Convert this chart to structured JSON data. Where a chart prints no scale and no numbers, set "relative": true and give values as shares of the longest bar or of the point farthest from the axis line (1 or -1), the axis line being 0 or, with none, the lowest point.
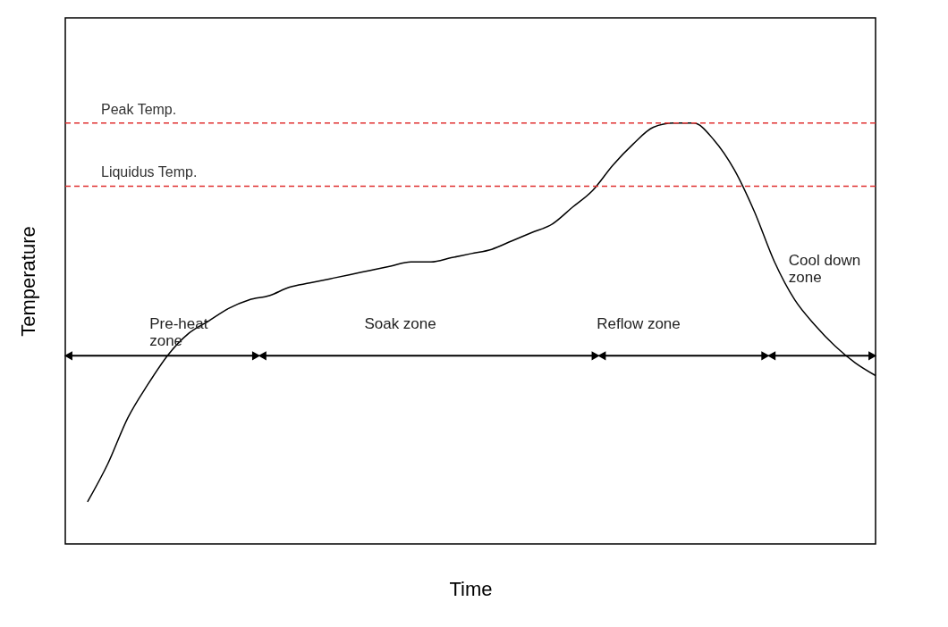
{
  "chart_data": {
    "type": "line",
    "relative": true,
    "xlabel": "Time",
    "ylabel": "Temperature",
    "categories": [
      null,
      null,
      null,
      null,
      null,
      null,
      null,
      null,
      null,
      null,
      null,
      null,
      null,
      null,
      null,
      null,
      null,
      null,
      null,
      null,
      null,
      null,
      null,
      null,
      null,
      null,
      null,
      null,
      null,
      null,
      null,
      null,
      null,
      null,
      null,
      null,
      null,
      null,
      null,
      null
    ],
    "series": [
      {
        "color": "#000000",
        "values": [
          0.1,
          0.19,
          0.3,
          0.38,
          0.45,
          0.5,
          0.53,
          0.56,
          0.58,
          0.59,
          0.61,
          0.62,
          0.63,
          0.64,
          0.65,
          0.66,
          0.67,
          0.67,
          0.68,
          0.69,
          0.7,
          0.72,
          0.74,
          0.76,
          0.8,
          0.84,
          0.9,
          0.95,
          0.99,
          1.0,
          1.0,
          0.96,
          0.89,
          0.79,
          0.67,
          0.58,
          0.52,
          0.47,
          0.43,
          0.4
        ]
      }
    ],
    "ref_lines": [
      {
        "axis": "y",
        "value": 1.0,
        "label": "Peak Temp.",
        "color": "#e03030",
        "line_style": "dashed"
      },
      {
        "axis": "y",
        "value": 0.85,
        "label": "Liquidus Temp.",
        "color": "#e03030",
        "line_style": "dashed"
      }
    ],
    "annotations": [
      "Pre-heat zone",
      "Soak zone",
      "Reflow zone",
      "Cool down zone"
    ],
    "grid": false,
    "marker": "none",
    "line_style": "solid",
    "tick_labels": false
  }
}
